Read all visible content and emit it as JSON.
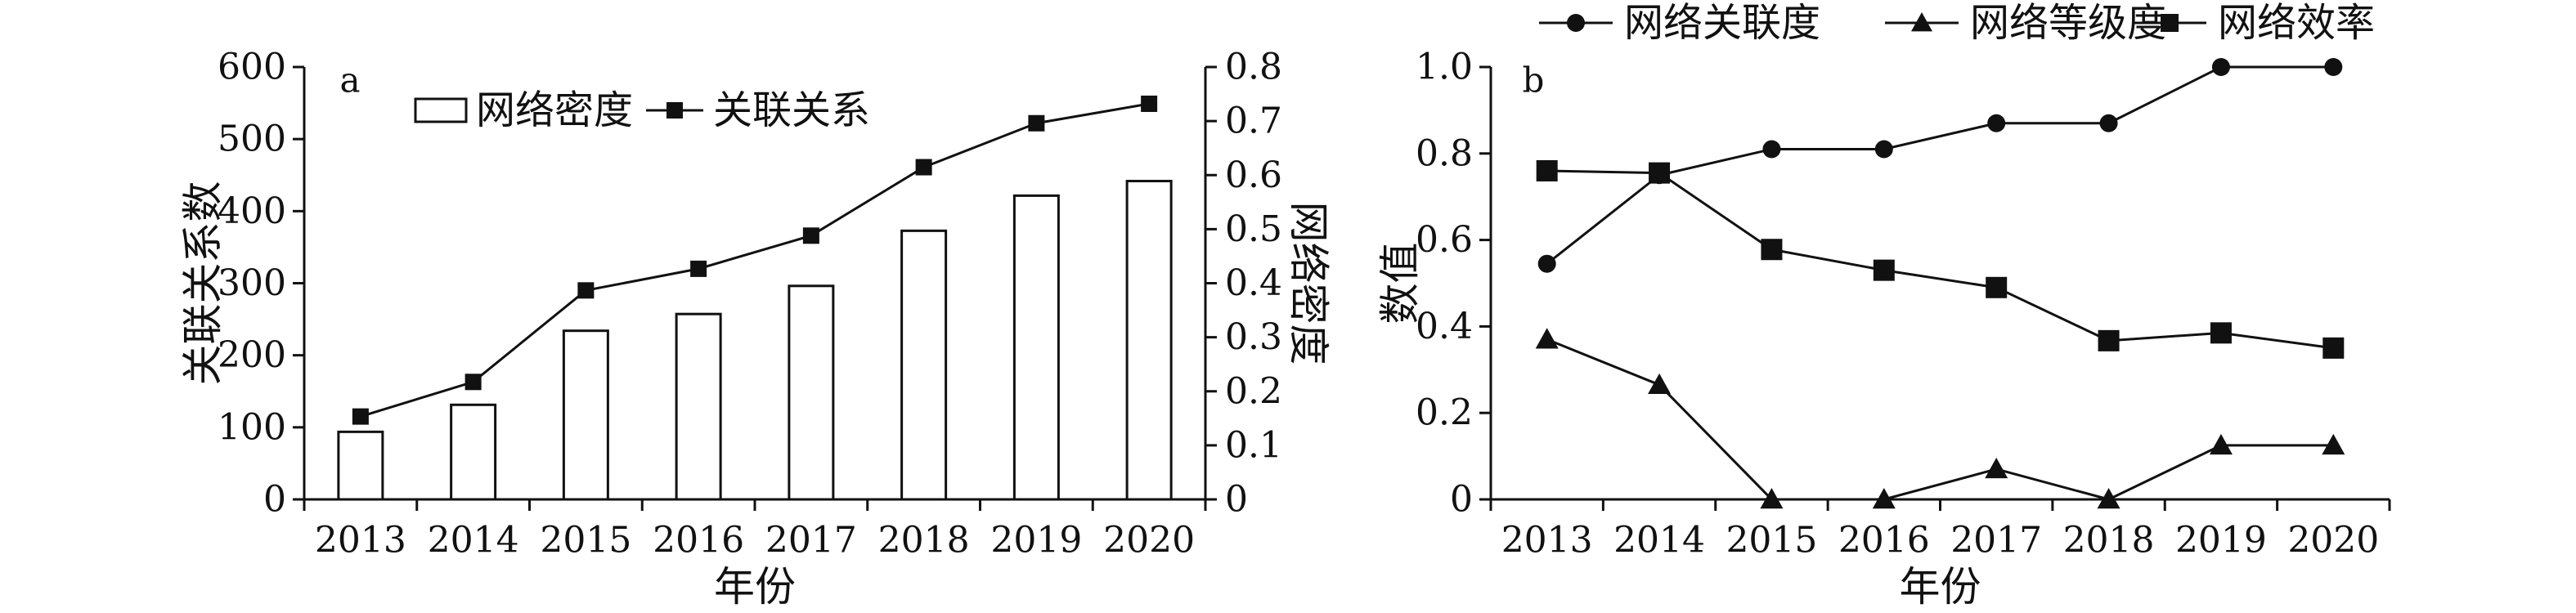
{
  "chart_data": [
    {
      "panel_label": "a",
      "type": "bar+line",
      "categories": [
        "2013",
        "2014",
        "2015",
        "2016",
        "2017",
        "2018",
        "2019",
        "2020"
      ],
      "xlabel": "年份",
      "ylabel_left": "关联关系数",
      "ylabel_right": "网络密度",
      "ylim_left": [
        0,
        600
      ],
      "ylim_right": [
        0,
        0.8
      ],
      "yticks_left": [
        "0",
        "100",
        "200",
        "300",
        "400",
        "500",
        "600"
      ],
      "yticks_right": [
        "0",
        "0.1",
        "0.2",
        "0.3",
        "0.4",
        "0.5",
        "0.6",
        "0.7",
        "0.8"
      ],
      "series": [
        {
          "name": "网络密度",
          "kind": "bar",
          "axis": "right",
          "values": [
            0.125,
            0.175,
            0.312,
            0.343,
            0.395,
            0.497,
            0.562,
            0.589
          ]
        },
        {
          "name": "关联关系",
          "kind": "line",
          "marker": "square-small",
          "axis": "left",
          "values": [
            115,
            163,
            290,
            320,
            366,
            461,
            522,
            549
          ]
        }
      ],
      "legend": "top-left",
      "grid": false
    },
    {
      "panel_label": "b",
      "type": "line",
      "categories": [
        "2013",
        "2014",
        "2015",
        "2016",
        "2017",
        "2018",
        "2019",
        "2020"
      ],
      "xlabel": "年份",
      "ylabel": "数值",
      "ylim": [
        0,
        1.0
      ],
      "yticks": [
        "0",
        "0.2",
        "0.4",
        "0.6",
        "0.8",
        "1.0"
      ],
      "series": [
        {
          "name": "网络关联度",
          "marker": "circle",
          "values": [
            0.545,
            0.75,
            0.81,
            0.81,
            0.87,
            0.87,
            1.0,
            1.0
          ]
        },
        {
          "name": "网络等级度",
          "marker": "triangle",
          "values": [
            0.37,
            0.265,
            0.0,
            0.0,
            0.07,
            0.0,
            0.125,
            0.125
          ]
        },
        {
          "name": "网络效率",
          "marker": "square",
          "values": [
            0.76,
            0.755,
            0.578,
            0.53,
            0.49,
            0.367,
            0.385,
            0.35
          ]
        }
      ],
      "legend": "top",
      "grid": false
    }
  ]
}
